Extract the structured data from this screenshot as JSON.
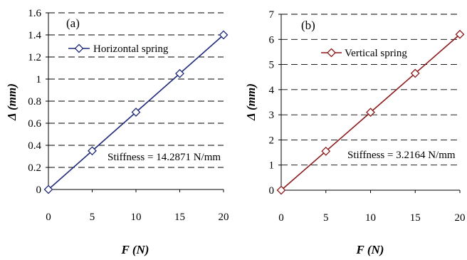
{
  "chart_data": [
    {
      "type": "line",
      "panel_label": "(a)",
      "xlabel": "F (N)",
      "ylabel": "Δ (mm)",
      "xlim": [
        0,
        20
      ],
      "ylim": [
        0,
        1.6
      ],
      "x_ticks": [
        0,
        5,
        10,
        15,
        20
      ],
      "y_ticks": [
        0,
        0.2,
        0.4,
        0.6,
        0.8,
        1,
        1.2,
        1.4,
        1.6
      ],
      "y_tick_labels": [
        "0",
        "0.2",
        "0.4",
        "0.6",
        "0.8",
        "1",
        "1.2",
        "1.4",
        "1.6"
      ],
      "grid": "horizontal dashed",
      "legend_position": "top-left",
      "series": [
        {
          "name": "Horizontal spring",
          "color": "#1f2a7a",
          "marker": "diamond",
          "x": [
            0,
            5,
            10,
            15,
            20
          ],
          "y": [
            0,
            0.35,
            0.7,
            1.05,
            1.4
          ]
        }
      ],
      "annotation": "Stiffness = 14.2871 N/mm"
    },
    {
      "type": "line",
      "panel_label": "(b)",
      "xlabel": "F (N)",
      "ylabel": "Δ (mm)",
      "xlim": [
        0,
        20
      ],
      "ylim": [
        0,
        7
      ],
      "x_ticks": [
        0,
        5,
        10,
        15,
        20
      ],
      "y_ticks": [
        0,
        1,
        2,
        3,
        4,
        5,
        6,
        7
      ],
      "y_tick_labels": [
        "0",
        "1",
        "2",
        "3",
        "4",
        "5",
        "6",
        "7"
      ],
      "grid": "horizontal dashed",
      "legend_position": "top-left",
      "series": [
        {
          "name": "Vertical spring",
          "color": "#8b1a1a",
          "marker": "diamond",
          "x": [
            0,
            5,
            10,
            15,
            20
          ],
          "y": [
            0,
            1.55,
            3.1,
            4.65,
            6.2
          ]
        }
      ],
      "annotation": "Stiffness = 3.2164 N/mm"
    }
  ]
}
